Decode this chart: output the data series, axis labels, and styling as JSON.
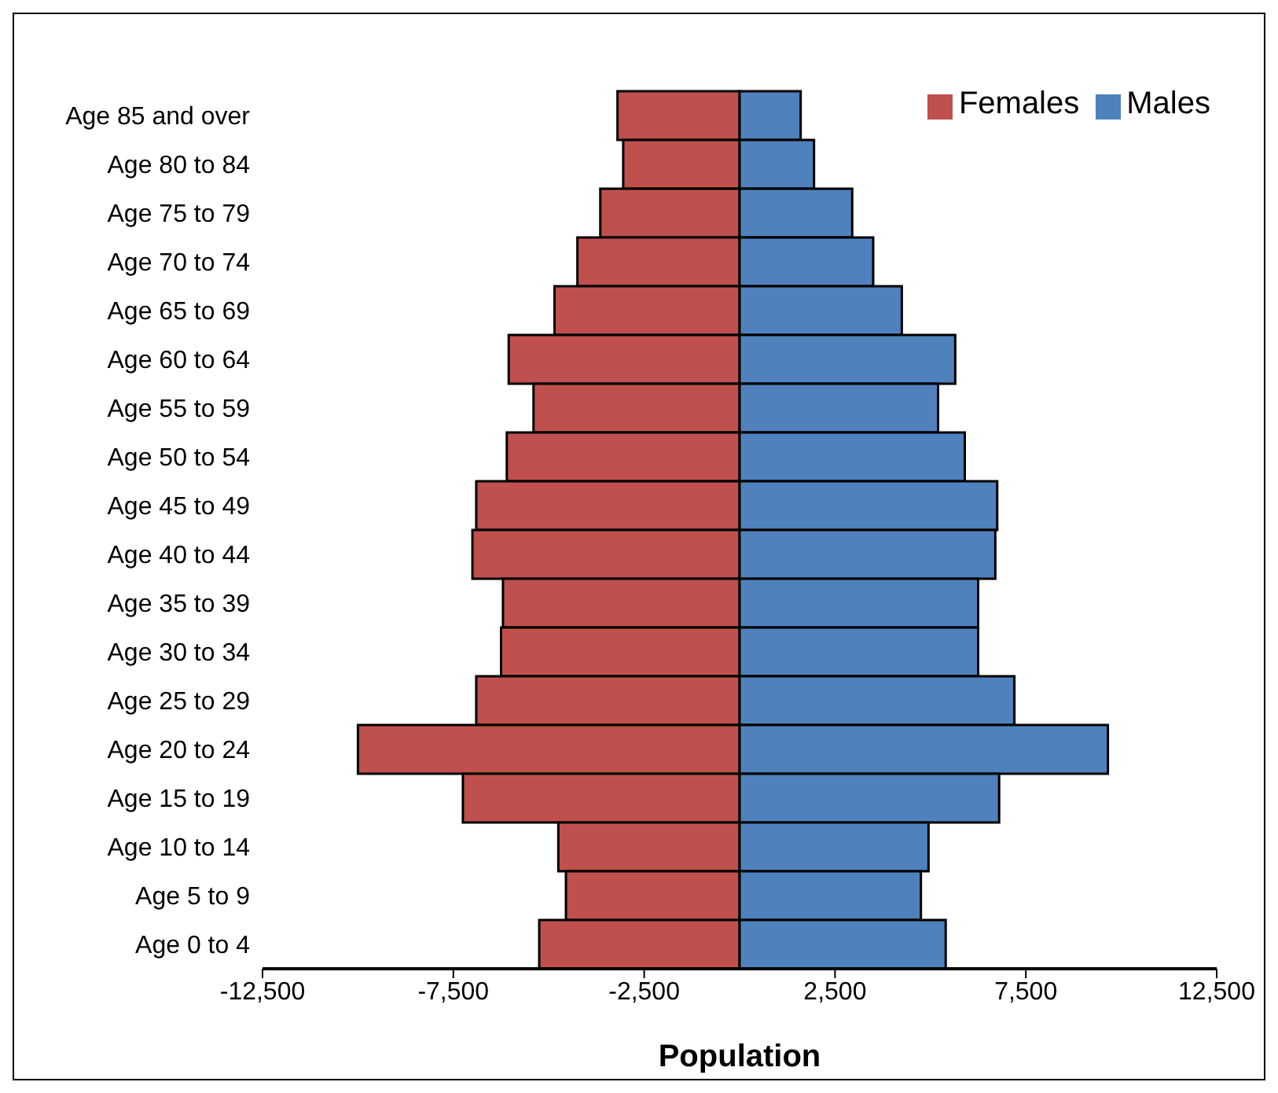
{
  "chart_data": {
    "type": "bar",
    "orientation": "horizontal",
    "stacked": true,
    "xlabel": "Population",
    "categories": [
      "Age 85 and over",
      "Age 80 to 84",
      "Age 75 to 79",
      "Age 70 to 74",
      "Age 65 to 69",
      "Age 60 to 64",
      "Age 55 to 59",
      "Age 50 to 54",
      "Age 45 to 49",
      "Age 40 to 44",
      "Age 35 to 39",
      "Age 30 to 34",
      "Age 25 to 29",
      "Age 20 to 24",
      "Age 15 to 19",
      "Age 10 to 14",
      "Age 5 to 9",
      "Age 0 to 4"
    ],
    "series": [
      {
        "name": "Females",
        "color": "#c0504d",
        "values": [
          -3200,
          -3050,
          -3650,
          -4250,
          -4850,
          -6050,
          -5400,
          -6100,
          -6900,
          -7000,
          -6200,
          -6250,
          -6900,
          -10000,
          -7250,
          -4750,
          -4550,
          -5250
        ]
      },
      {
        "name": "Males",
        "color": "#4f81bd",
        "values": [
          1600,
          1950,
          2950,
          3500,
          4250,
          5650,
          5200,
          5900,
          6750,
          6700,
          6250,
          6250,
          7200,
          9650,
          6800,
          4950,
          4750,
          5400
        ]
      }
    ],
    "xlim": [
      -12500,
      12500
    ],
    "xticks": [
      {
        "value": -12500,
        "label": "-12,500"
      },
      {
        "value": -7500,
        "label": "-7,500"
      },
      {
        "value": -2500,
        "label": "-2,500"
      },
      {
        "value": 2500,
        "label": "2,500"
      },
      {
        "value": 7500,
        "label": "7,500"
      },
      {
        "value": 12500,
        "label": "12,500"
      }
    ],
    "grid": false,
    "legend": "top right"
  }
}
